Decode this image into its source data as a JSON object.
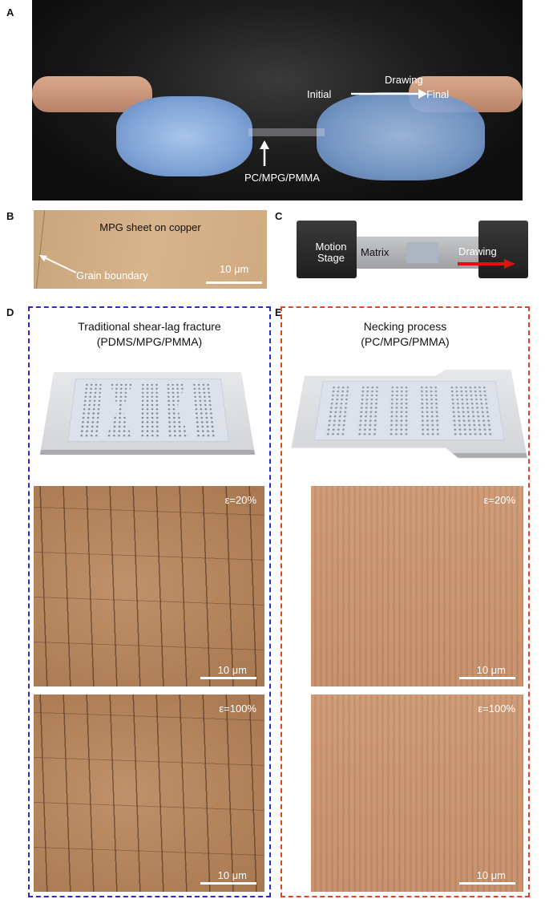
{
  "panels": {
    "A": {
      "label": "A",
      "drawing": "Drawing",
      "initial": "Initial",
      "final": "Final",
      "sample": "PC/MPG/PMMA"
    },
    "B": {
      "label": "B",
      "caption": "MPG sheet on copper",
      "grain": "Grain boundary",
      "scale": "10 μm"
    },
    "C": {
      "label": "C",
      "stage": "Motion Stage",
      "matrix": "Matrix",
      "drawing": "Drawing"
    },
    "D": {
      "label": "D",
      "title1": "Traditional shear-lag fracture",
      "title2": "(PDMS/MPG/PMMA)",
      "strain1": "ε=20%",
      "strain2": "ε=100%",
      "scale": "10 μm",
      "frame_color": "#2a2ad0"
    },
    "E": {
      "label": "E",
      "title1": "Necking process",
      "title2": "(PC/MPG/PMMA)",
      "strain1": "ε=20%",
      "strain2": "ε=100%",
      "scale": "10 μm",
      "frame_color": "#e0452a"
    }
  }
}
